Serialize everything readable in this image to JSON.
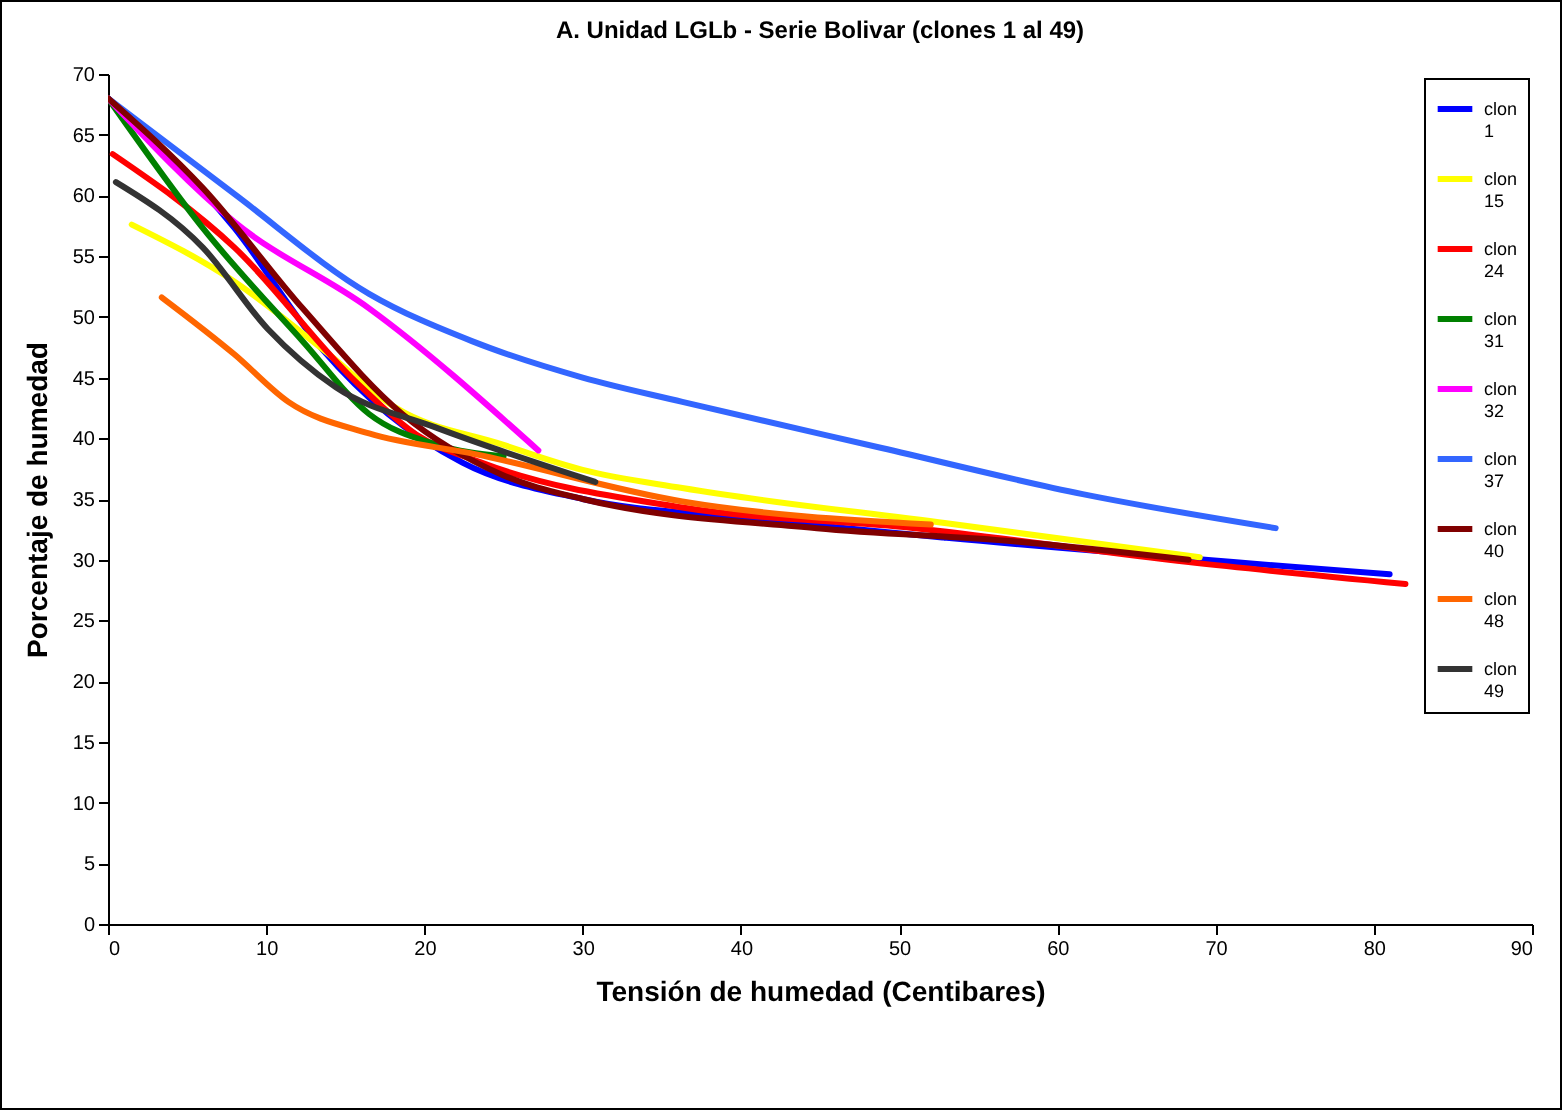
{
  "chart_data": {
    "type": "line",
    "title": "A. Unidad LGLb  - Serie Bolivar   (clones 1 al 49)",
    "xlabel": "Tensión de humedad (Centibares)",
    "ylabel": "Porcentaje de humedad",
    "xlim": [
      0,
      90
    ],
    "xticks": [
      0,
      10,
      20,
      30,
      40,
      50,
      60,
      70,
      80,
      90
    ],
    "ylim": [
      0,
      70
    ],
    "yticks": [
      0,
      5,
      10,
      15,
      20,
      25,
      30,
      35,
      40,
      45,
      50,
      55,
      60,
      65,
      70
    ],
    "grid": false,
    "legend": "top right",
    "marker": "none",
    "line_style": "solid",
    "series": [
      {
        "name": "clon 1",
        "color": "#0000ff",
        "x": [
          0,
          8,
          13.5,
          17.7,
          22.4,
          30,
          40.5,
          53,
          81
        ],
        "values": [
          68,
          57.3,
          47.4,
          42,
          38,
          35,
          33.4,
          31.8,
          28.8
        ]
      },
      {
        "name": "clon 15",
        "color": "#ffff00",
        "x": [
          1.5,
          8,
          13.5,
          18.2,
          24.9,
          30,
          36.3,
          53,
          69
        ],
        "values": [
          57.6,
          52.9,
          47.4,
          42.5,
          39.5,
          37.4,
          35.9,
          33,
          30.2
        ]
      },
      {
        "name": "clon 24",
        "color": "#ff0000",
        "x": [
          0.3,
          8,
          15.7,
          19.5,
          23.6,
          36.3,
          51,
          68.3,
          82
        ],
        "values": [
          63.4,
          55.7,
          44.6,
          40.3,
          38,
          34.3,
          32.6,
          29.8,
          28
        ]
      },
      {
        "name": "clon 31",
        "color": "#008000",
        "x": [
          0,
          6,
          12.3,
          16.5,
          20.7,
          25
        ],
        "values": [
          68,
          57.3,
          48,
          42,
          39.5,
          38.5
        ]
      },
      {
        "name": "clon 32",
        "color": "#ff00ff",
        "x": [
          0,
          8,
          16.5,
          27.2
        ],
        "values": [
          68,
          57.8,
          50.7,
          39
        ]
      },
      {
        "name": "clon 37",
        "color": "#3366ff",
        "x": [
          0,
          8,
          16.5,
          23,
          30,
          36.3,
          48.9,
          61.6,
          73.8
        ],
        "values": [
          68,
          60.1,
          51.9,
          48,
          45,
          43,
          39.2,
          35.4,
          32.6
        ]
      },
      {
        "name": "clon 40",
        "color": "#800000",
        "x": [
          0,
          6,
          12.3,
          18.6,
          24.9,
          30,
          44.8,
          57.4,
          68.3
        ],
        "values": [
          68,
          60.6,
          50.7,
          42,
          37,
          35,
          32.6,
          31.5,
          30
        ]
      },
      {
        "name": "clon 48",
        "color": "#ff6600",
        "x": [
          3.4,
          8,
          11.4,
          16.5,
          23.2,
          36.3,
          52
        ],
        "values": [
          51.6,
          46.9,
          43,
          40.4,
          38.7,
          34.8,
          32.9
        ]
      },
      {
        "name": "clon 49",
        "color": "#333333",
        "x": [
          0.5,
          6,
          10.1,
          14.4,
          20.7,
          30.8
        ],
        "values": [
          61.1,
          55.7,
          49,
          44.2,
          40.9,
          36.4
        ]
      }
    ]
  }
}
